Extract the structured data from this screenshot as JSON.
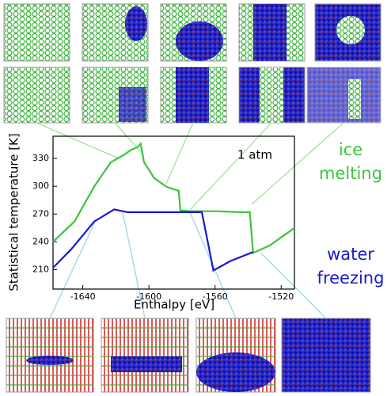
{
  "chart_data": {
    "type": "line",
    "x_label": "Enthalpy [eV]",
    "y_label": "Statistical temperature [K]",
    "annotation": "1 atm",
    "xlim": [
      -1658,
      -1512
    ],
    "xticks": [
      -1640,
      -1600,
      -1560,
      -1520
    ],
    "ylim": [
      189,
      354
    ],
    "yticks": [
      210,
      240,
      270,
      300,
      330
    ],
    "series": [
      {
        "name": "ice melting",
        "color": "#3cc43c",
        "x": [
          -1658,
          -1645,
          -1633,
          -1623,
          -1615,
          -1611,
          -1607,
          -1605,
          -1603,
          -1599,
          -1597,
          -1589,
          -1582,
          -1581,
          -1575,
          -1560,
          -1545,
          -1539,
          -1537,
          -1527,
          -1512
        ],
        "values": [
          240,
          262,
          300,
          326,
          334,
          339,
          342,
          346,
          326,
          315,
          309,
          299,
          295,
          274,
          273,
          273,
          272,
          272,
          228,
          236,
          255
        ]
      },
      {
        "name": "water freezing",
        "color": "#1a1acc",
        "x": [
          -1658,
          -1647,
          -1633,
          -1621,
          -1613,
          -1600,
          -1585,
          -1568,
          -1564,
          -1561,
          -1551,
          -1537
        ],
        "values": [
          212,
          232,
          262,
          275,
          272,
          272,
          272,
          272,
          236,
          209,
          219,
          229
        ]
      }
    ]
  }
}
